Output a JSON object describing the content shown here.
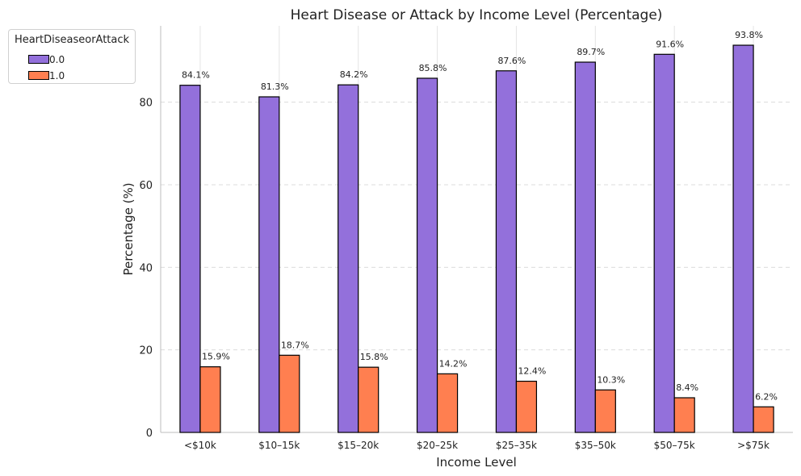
{
  "chart_data": {
    "type": "bar",
    "title": "Heart Disease or Attack by Income Level (Percentage)",
    "xlabel": "Income Level",
    "ylabel": "Percentage (%)",
    "categories": [
      "<$10k",
      "$10–15k",
      "$15–20k",
      "$20–25k",
      "$25–35k",
      "$35–50k",
      "$50–75k",
      ">$75k"
    ],
    "series": [
      {
        "name": "0.0",
        "color": "#9370db",
        "values": [
          84.1,
          81.3,
          84.2,
          85.8,
          87.6,
          89.7,
          91.6,
          93.8
        ],
        "labels": [
          "84.1%",
          "81.3%",
          "84.2%",
          "85.8%",
          "87.6%",
          "89.7%",
          "91.6%",
          "93.8%"
        ]
      },
      {
        "name": "1.0",
        "color": "#ff7f50",
        "values": [
          15.9,
          18.7,
          15.8,
          14.2,
          12.4,
          10.3,
          8.4,
          6.2
        ],
        "labels": [
          "15.9%",
          "18.7%",
          "15.8%",
          "14.2%",
          "12.4%",
          "10.3%",
          "8.4%",
          "6.2%"
        ]
      }
    ],
    "legend_title": "HeartDiseaseorAttack",
    "legend_position": "upper-left outside",
    "yticks": [
      0,
      20,
      40,
      60,
      80
    ],
    "ylim": [
      0,
      98.5
    ],
    "grid": "vertical solid and horizontal dashed"
  }
}
